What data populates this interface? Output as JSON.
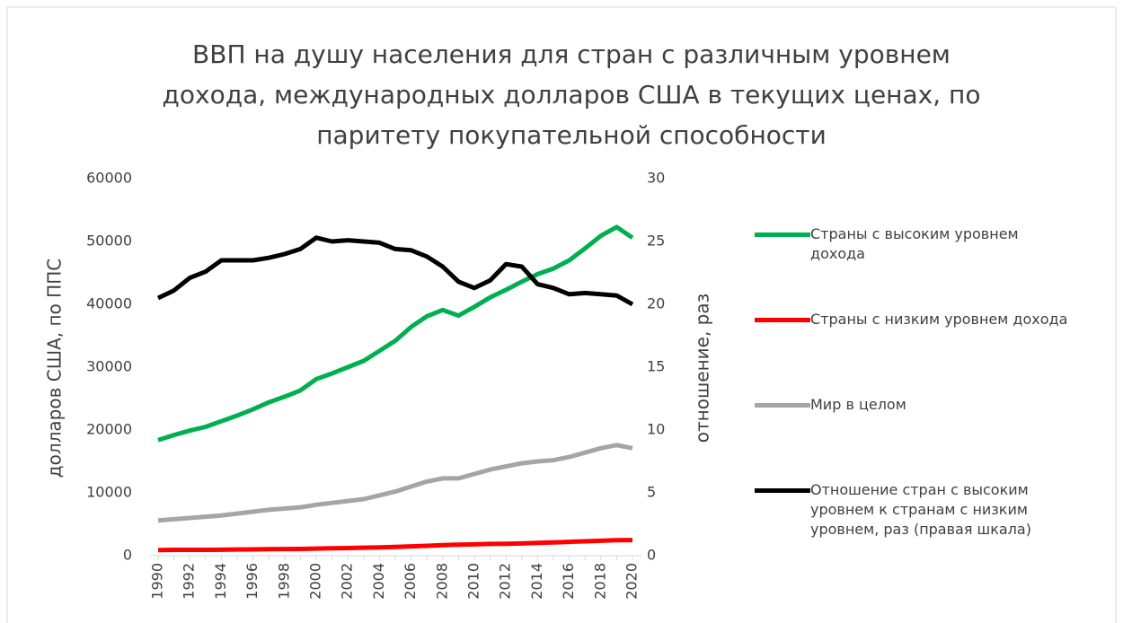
{
  "chart_data": {
    "type": "line",
    "title": "ВВП на душу населения для стран с различным уровнем дохода, международных долларов США в текущих ценах, по паритету покупательной способности",
    "ylabel": "долларов США, по ППС",
    "y2label": "отношение, раз",
    "categories": [
      "1990",
      null,
      "1992",
      null,
      "1994",
      null,
      "1996",
      null,
      "1998",
      null,
      "2000",
      null,
      "2002",
      null,
      "2004",
      null,
      "2006",
      null,
      "2008",
      null,
      "2010",
      null,
      "2012",
      null,
      "2014",
      null,
      "2016",
      null,
      "2018",
      null,
      "2020"
    ],
    "ylim": [
      0,
      60000
    ],
    "yticks": [
      0,
      10000,
      20000,
      30000,
      40000,
      50000,
      60000
    ],
    "y2lim": [
      0,
      30
    ],
    "y2ticks": [
      0,
      5,
      10,
      15,
      20,
      25,
      30
    ],
    "legend": "right",
    "series": [
      {
        "name": "Страны с высоким уровнем дохода",
        "color": "#00b050",
        "values": [
          18400,
          19200,
          19900,
          20500,
          21400,
          22300,
          23300,
          24400,
          25300,
          26300,
          28100,
          29000,
          30000,
          31000,
          32600,
          34200,
          36400,
          38100,
          39100,
          38200,
          39600,
          41100,
          42300,
          43600,
          44800,
          45700,
          47000,
          48900,
          50900,
          52300,
          50600
        ]
      },
      {
        "name": "Страны с низким уровнем дохода",
        "color": "#ff0000",
        "values": [
          900,
          920,
          930,
          930,
          950,
          980,
          1000,
          1030,
          1060,
          1080,
          1120,
          1170,
          1210,
          1260,
          1320,
          1390,
          1480,
          1580,
          1680,
          1750,
          1800,
          1880,
          1900,
          1950,
          2030,
          2110,
          2200,
          2280,
          2380,
          2470,
          2480
        ]
      },
      {
        "name": "Мир в целом",
        "color": "#a5a5a5",
        "values": [
          5600,
          5800,
          6000,
          6200,
          6400,
          6700,
          7000,
          7300,
          7500,
          7700,
          8100,
          8400,
          8700,
          9000,
          9600,
          10200,
          11000,
          11800,
          12300,
          12300,
          13000,
          13700,
          14200,
          14700,
          15000,
          15200,
          15700,
          16400,
          17100,
          17600,
          17100
        ]
      },
      {
        "name": "Отношение стран с высоким уровнем к странам с низким уровнем, раз (правая шкала)",
        "color": "#000000",
        "axis": "y2",
        "values": [
          20.5,
          21.1,
          22.1,
          22.6,
          23.5,
          23.5,
          23.5,
          23.7,
          24.0,
          24.4,
          25.3,
          25.0,
          25.1,
          25.0,
          24.9,
          24.4,
          24.3,
          23.8,
          23.0,
          21.8,
          21.3,
          21.9,
          23.2,
          23.0,
          21.6,
          21.3,
          20.8,
          20.9,
          20.8,
          20.7,
          20.0
        ]
      }
    ]
  }
}
